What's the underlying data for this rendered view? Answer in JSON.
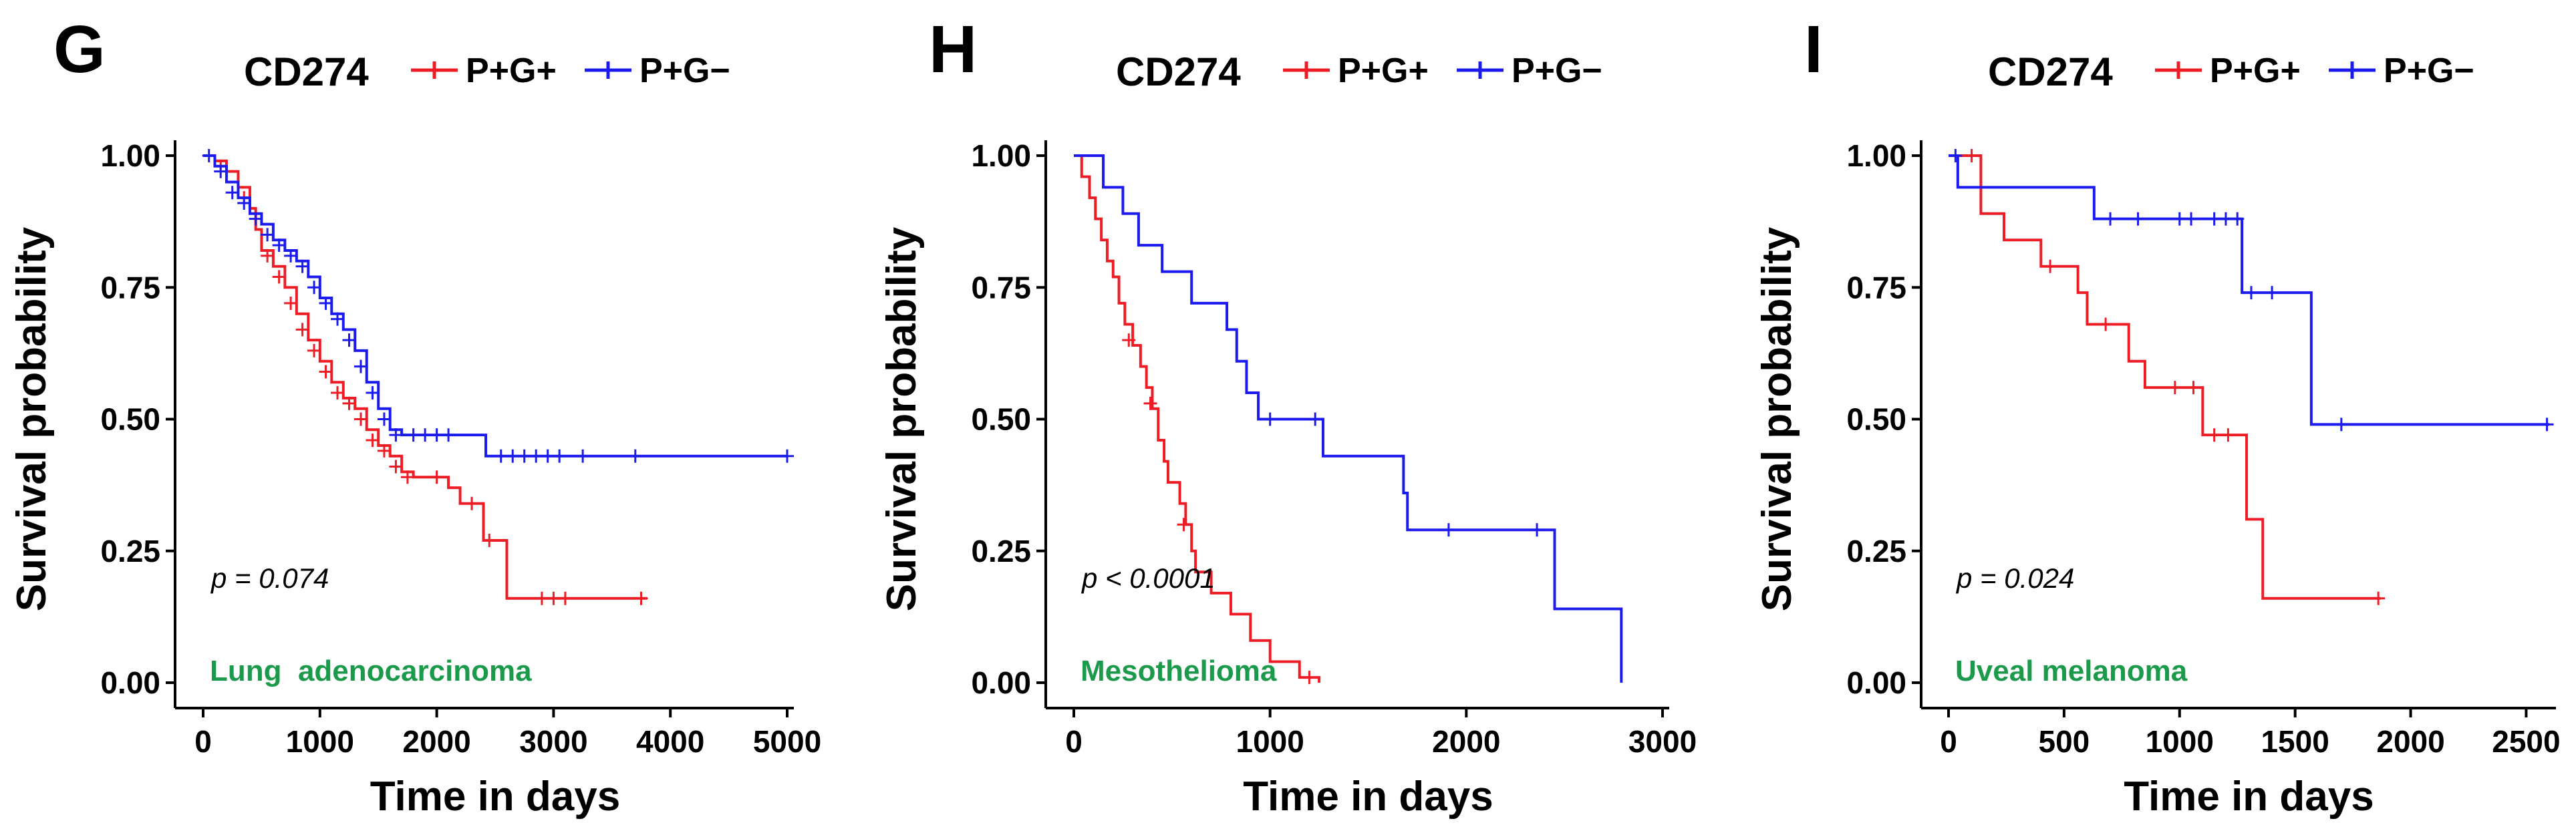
{
  "colors": {
    "pg_pos": "#ee1c25",
    "pg_neg": "#1b1bef",
    "cancer_label": "#1a9a4a",
    "axis": "#000000"
  },
  "chart_data": [
    {
      "type": "line",
      "subtype": "kaplan-meier",
      "panel": "G",
      "legend_title": "CD274",
      "legend": [
        "P+G+",
        "P+G−"
      ],
      "xlabel": "Time in days",
      "ylabel": "Survival probability",
      "xlim": [
        0,
        5000
      ],
      "ylim": [
        0,
        1
      ],
      "xticks": [
        0,
        1000,
        2000,
        3000,
        4000,
        5000
      ],
      "xtick_labels": [
        "0",
        "1000",
        "2000",
        "3000",
        "4000",
        "5000"
      ],
      "yticks": [
        0,
        0.25,
        0.5,
        0.75,
        1
      ],
      "ytick_labels": [
        "0.00",
        "0.25",
        "0.50",
        "0.75",
        "1.00"
      ],
      "pvalue": "p = 0.074",
      "cancer": "Lung  adenocarcinoma",
      "series": [
        {
          "name": "P+G+",
          "points": [
            [
              0,
              1
            ],
            [
              100,
              0.99
            ],
            [
              200,
              0.97
            ],
            [
              300,
              0.94
            ],
            [
              400,
              0.9
            ],
            [
              450,
              0.86
            ],
            [
              500,
              0.82
            ],
            [
              600,
              0.79
            ],
            [
              700,
              0.75
            ],
            [
              800,
              0.7
            ],
            [
              900,
              0.65
            ],
            [
              1000,
              0.61
            ],
            [
              1100,
              0.57
            ],
            [
              1200,
              0.54
            ],
            [
              1300,
              0.52
            ],
            [
              1400,
              0.48
            ],
            [
              1500,
              0.45
            ],
            [
              1600,
              0.43
            ],
            [
              1700,
              0.4
            ],
            [
              1800,
              0.39
            ],
            [
              2100,
              0.37
            ],
            [
              2200,
              0.34
            ],
            [
              2400,
              0.27
            ],
            [
              2600,
              0.16
            ],
            [
              3800,
              0.16
            ]
          ],
          "censors": [
            [
              150,
              0.98
            ],
            [
              350,
              0.92
            ],
            [
              550,
              0.81
            ],
            [
              650,
              0.77
            ],
            [
              750,
              0.72
            ],
            [
              850,
              0.67
            ],
            [
              950,
              0.63
            ],
            [
              1050,
              0.59
            ],
            [
              1150,
              0.55
            ],
            [
              1250,
              0.53
            ],
            [
              1350,
              0.5
            ],
            [
              1450,
              0.46
            ],
            [
              1550,
              0.44
            ],
            [
              1650,
              0.41
            ],
            [
              1750,
              0.39
            ],
            [
              2000,
              0.39
            ],
            [
              2300,
              0.34
            ],
            [
              2450,
              0.27
            ],
            [
              2900,
              0.16
            ],
            [
              3000,
              0.16
            ],
            [
              3100,
              0.16
            ],
            [
              3750,
              0.16
            ]
          ]
        },
        {
          "name": "P+G−",
          "points": [
            [
              0,
              1
            ],
            [
              100,
              0.98
            ],
            [
              200,
              0.95
            ],
            [
              300,
              0.92
            ],
            [
              400,
              0.89
            ],
            [
              500,
              0.87
            ],
            [
              600,
              0.84
            ],
            [
              700,
              0.82
            ],
            [
              800,
              0.8
            ],
            [
              900,
              0.77
            ],
            [
              1000,
              0.73
            ],
            [
              1100,
              0.7
            ],
            [
              1200,
              0.67
            ],
            [
              1300,
              0.63
            ],
            [
              1400,
              0.57
            ],
            [
              1500,
              0.52
            ],
            [
              1600,
              0.48
            ],
            [
              1700,
              0.47
            ],
            [
              2400,
              0.47
            ],
            [
              2420,
              0.43
            ],
            [
              5000,
              0.43
            ]
          ],
          "censors": [
            [
              50,
              1
            ],
            [
              150,
              0.97
            ],
            [
              250,
              0.93
            ],
            [
              350,
              0.91
            ],
            [
              450,
              0.88
            ],
            [
              550,
              0.85
            ],
            [
              650,
              0.83
            ],
            [
              750,
              0.81
            ],
            [
              850,
              0.79
            ],
            [
              950,
              0.75
            ],
            [
              1050,
              0.72
            ],
            [
              1150,
              0.69
            ],
            [
              1250,
              0.65
            ],
            [
              1350,
              0.6
            ],
            [
              1450,
              0.55
            ],
            [
              1550,
              0.5
            ],
            [
              1650,
              0.47
            ],
            [
              1800,
              0.47
            ],
            [
              1900,
              0.47
            ],
            [
              2000,
              0.47
            ],
            [
              2100,
              0.47
            ],
            [
              2550,
              0.43
            ],
            [
              2650,
              0.43
            ],
            [
              2750,
              0.43
            ],
            [
              2850,
              0.43
            ],
            [
              2950,
              0.43
            ],
            [
              3050,
              0.43
            ],
            [
              3250,
              0.43
            ],
            [
              3700,
              0.43
            ],
            [
              5000,
              0.43
            ]
          ]
        }
      ]
    },
    {
      "type": "line",
      "subtype": "kaplan-meier",
      "panel": "H",
      "legend_title": "CD274",
      "legend": [
        "P+G+",
        "P+G−"
      ],
      "xlabel": "Time in days",
      "ylabel": "Survival probability",
      "xlim": [
        0,
        3000
      ],
      "ylim": [
        0,
        1
      ],
      "xticks": [
        0,
        1000,
        2000,
        3000
      ],
      "xtick_labels": [
        "0",
        "1000",
        "2000",
        "3000"
      ],
      "yticks": [
        0,
        0.25,
        0.5,
        0.75,
        1
      ],
      "ytick_labels": [
        "0.00",
        "0.25",
        "0.50",
        "0.75",
        "1.00"
      ],
      "pvalue": "p < 0.0001",
      "cancer": "Mesothelioma",
      "series": [
        {
          "name": "P+G+",
          "points": [
            [
              0,
              1
            ],
            [
              40,
              0.96
            ],
            [
              80,
              0.92
            ],
            [
              110,
              0.88
            ],
            [
              140,
              0.84
            ],
            [
              170,
              0.8
            ],
            [
              200,
              0.77
            ],
            [
              230,
              0.72
            ],
            [
              260,
              0.68
            ],
            [
              300,
              0.64
            ],
            [
              340,
              0.6
            ],
            [
              370,
              0.56
            ],
            [
              400,
              0.52
            ],
            [
              430,
              0.46
            ],
            [
              460,
              0.42
            ],
            [
              480,
              0.38
            ],
            [
              540,
              0.34
            ],
            [
              570,
              0.3
            ],
            [
              600,
              0.25
            ],
            [
              620,
              0.21
            ],
            [
              700,
              0.17
            ],
            [
              800,
              0.13
            ],
            [
              900,
              0.08
            ],
            [
              1000,
              0.04
            ],
            [
              1150,
              0.01
            ],
            [
              1250,
              0
            ]
          ],
          "censors": [
            [
              280,
              0.65
            ],
            [
              390,
              0.53
            ],
            [
              560,
              0.3
            ],
            [
              1200,
              0.01
            ]
          ]
        },
        {
          "name": "P+G−",
          "points": [
            [
              0,
              1
            ],
            [
              150,
              0.94
            ],
            [
              250,
              0.89
            ],
            [
              330,
              0.83
            ],
            [
              450,
              0.78
            ],
            [
              600,
              0.72
            ],
            [
              780,
              0.67
            ],
            [
              830,
              0.61
            ],
            [
              880,
              0.55
            ],
            [
              940,
              0.5
            ],
            [
              1270,
              0.43
            ],
            [
              1680,
              0.36
            ],
            [
              1700,
              0.29
            ],
            [
              2450,
              0.14
            ],
            [
              2790,
              0
            ]
          ],
          "censors": [
            [
              1000,
              0.5
            ],
            [
              1230,
              0.5
            ],
            [
              1910,
              0.29
            ],
            [
              2360,
              0.29
            ]
          ]
        }
      ]
    },
    {
      "type": "line",
      "subtype": "kaplan-meier",
      "panel": "I",
      "legend_title": "CD274",
      "legend": [
        "P+G+",
        "P+G−"
      ],
      "xlabel": "Time in days",
      "ylabel": "Survival probability",
      "xlim": [
        0,
        2600
      ],
      "ylim": [
        0,
        1
      ],
      "xticks": [
        0,
        500,
        1000,
        1500,
        2000,
        2500
      ],
      "xtick_labels": [
        "0",
        "500",
        "1000",
        "1500",
        "2000",
        "2500"
      ],
      "yticks": [
        0,
        0.25,
        0.5,
        0.75,
        1
      ],
      "ytick_labels": [
        "0.00",
        "0.25",
        "0.50",
        "0.75",
        "1.00"
      ],
      "pvalue": "p = 0.024",
      "cancer": "Uveal melanoma",
      "series": [
        {
          "name": "P+G+",
          "points": [
            [
              0,
              1
            ],
            [
              140,
              0.89
            ],
            [
              240,
              0.84
            ],
            [
              400,
              0.79
            ],
            [
              560,
              0.74
            ],
            [
              600,
              0.68
            ],
            [
              780,
              0.61
            ],
            [
              850,
              0.56
            ],
            [
              1100,
              0.47
            ],
            [
              1290,
              0.31
            ],
            [
              1360,
              0.16
            ],
            [
              1870,
              0.16
            ]
          ],
          "censors": [
            [
              100,
              1
            ],
            [
              440,
              0.79
            ],
            [
              680,
              0.68
            ],
            [
              980,
              0.56
            ],
            [
              1060,
              0.56
            ],
            [
              1150,
              0.47
            ],
            [
              1210,
              0.47
            ],
            [
              1860,
              0.16
            ]
          ]
        },
        {
          "name": "P+G−",
          "points": [
            [
              0,
              1
            ],
            [
              40,
              0.94
            ],
            [
              630,
              0.88
            ],
            [
              1270,
              0.74
            ],
            [
              1570,
              0.49
            ],
            [
              2600,
              0.49
            ]
          ],
          "censors": [
            [
              30,
              1
            ],
            [
              700,
              0.88
            ],
            [
              820,
              0.88
            ],
            [
              1000,
              0.88
            ],
            [
              1050,
              0.88
            ],
            [
              1150,
              0.88
            ],
            [
              1200,
              0.88
            ],
            [
              1250,
              0.88
            ],
            [
              1310,
              0.74
            ],
            [
              1400,
              0.74
            ],
            [
              1700,
              0.49
            ],
            [
              2590,
              0.49
            ]
          ]
        }
      ]
    }
  ]
}
